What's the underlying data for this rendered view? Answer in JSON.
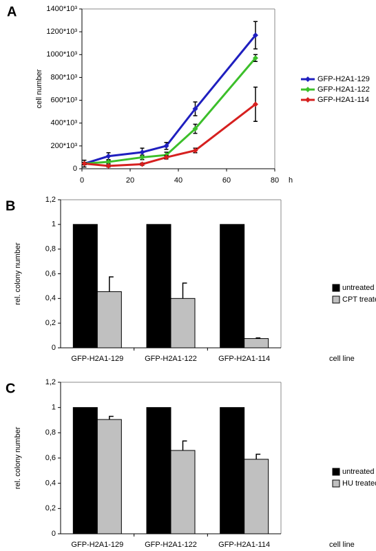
{
  "chart_data": [
    {
      "type": "line",
      "panel": "A",
      "ylabel": "cell number",
      "xlabel": "h",
      "x": [
        1,
        11,
        25,
        35,
        47,
        72
      ],
      "series": [
        {
          "name": "GFP-H2A1-129",
          "color": "#1f1fbf",
          "values": [
            45000,
            110000,
            145000,
            200000,
            525000,
            1170000
          ],
          "errors": [
            30000,
            30000,
            35000,
            30000,
            60000,
            120000
          ]
        },
        {
          "name": "GFP-H2A1-122",
          "color": "#3cbf2a",
          "values": [
            45000,
            60000,
            100000,
            120000,
            350000,
            970000
          ],
          "errors": [
            10000,
            15000,
            20000,
            25000,
            40000,
            30000
          ]
        },
        {
          "name": "GFP-H2A1-114",
          "color": "#d6201f",
          "values": [
            45000,
            25000,
            40000,
            100000,
            160000,
            565000
          ],
          "errors": [
            10000,
            10000,
            10000,
            15000,
            20000,
            150000
          ]
        }
      ],
      "xlim": [
        0,
        80
      ],
      "xticks": [
        0,
        20,
        40,
        60,
        80
      ],
      "ylim": [
        0,
        1400000
      ],
      "yticks": [
        0,
        {
          "value": 200000,
          "label": "200*10³"
        },
        {
          "value": 400000,
          "label": "400*10³"
        },
        {
          "value": 600000,
          "label": "600*10³"
        },
        {
          "value": 800000,
          "label": "800*10³"
        },
        {
          "value": 1000000,
          "label": "1000*10³"
        },
        {
          "value": 1200000,
          "label": "1200*10³"
        },
        {
          "value": 1400000,
          "label": "1400*10³"
        }
      ]
    },
    {
      "type": "bar",
      "panel": "B",
      "ylabel": "rel. colony number",
      "xlabel": "cell line",
      "categories": [
        "GFP-H2A1-129",
        "GFP-H2A1-122",
        "GFP-H2A1-114"
      ],
      "series": [
        {
          "name": "untreated",
          "color": "#000000",
          "values": [
            1,
            1,
            1
          ]
        },
        {
          "name": "CPT treated",
          "color": "#c0c0c0",
          "values": [
            0.455,
            0.4,
            0.075
          ],
          "errors": [
            0.12,
            0.125,
            0.005
          ]
        }
      ],
      "ylim": [
        0,
        1.2
      ],
      "yticks": [
        0,
        {
          "value": 0.2,
          "label": "0,2"
        },
        {
          "value": 0.4,
          "label": "0,4"
        },
        {
          "value": 0.6,
          "label": "0,6"
        },
        {
          "value": 0.8,
          "label": "0,8"
        },
        1,
        {
          "value": 1.2,
          "label": "1,2"
        }
      ]
    },
    {
      "type": "bar",
      "panel": "C",
      "ylabel": "rel. colony number",
      "xlabel": "cell line",
      "categories": [
        "GFP-H2A1-129",
        "GFP-H2A1-122",
        "GFP-H2A1-114"
      ],
      "series": [
        {
          "name": "untreated",
          "color": "#000000",
          "values": [
            1,
            1,
            1
          ]
        },
        {
          "name": "HU treated",
          "color": "#c0c0c0",
          "values": [
            0.905,
            0.66,
            0.59
          ],
          "errors": [
            0.025,
            0.075,
            0.04
          ]
        }
      ],
      "ylim": [
        0,
        1.2
      ],
      "yticks": [
        0,
        {
          "value": 0.2,
          "label": "0,2"
        },
        {
          "value": 0.4,
          "label": "0,4"
        },
        {
          "value": 0.6,
          "label": "0,6"
        },
        {
          "value": 0.8,
          "label": "0,8"
        },
        1,
        {
          "value": 1.2,
          "label": "1,2"
        }
      ]
    }
  ]
}
